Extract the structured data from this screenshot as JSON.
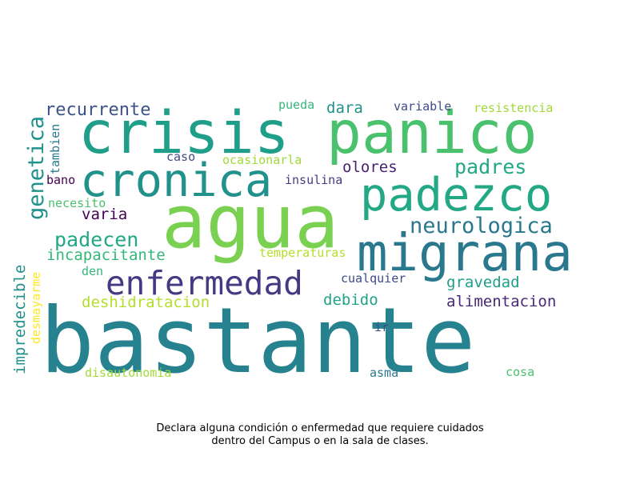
{
  "words": {
    "bastante": {
      "text": "bastante",
      "color": "#26828e"
    },
    "agua": {
      "text": "agua",
      "color": "#7ad151"
    },
    "crisis": {
      "text": "crisis",
      "color": "#1f9e89"
    },
    "panico": {
      "text": "panico",
      "color": "#4ac16d"
    },
    "migrana": {
      "text": "migrana",
      "color": "#2a788e"
    },
    "cronica": {
      "text": "cronica",
      "color": "#21918c"
    },
    "padezco": {
      "text": "padezco",
      "color": "#22a884"
    },
    "enfermedad": {
      "text": "enfermedad",
      "color": "#443983"
    },
    "genetica": {
      "text": "genetica",
      "color": "#21918c"
    },
    "neurologica": {
      "text": "neurologica",
      "color": "#2a788e"
    },
    "padres": {
      "text": "padres",
      "color": "#22a884"
    },
    "padecen": {
      "text": "padecen",
      "color": "#22a884"
    },
    "recurrente": {
      "text": "recurrente",
      "color": "#3b528b"
    },
    "incapacitante": {
      "text": "incapacitante",
      "color": "#35b779"
    },
    "deshidratacion": {
      "text": "deshidratacion",
      "color": "#b5de2b"
    },
    "gravedad": {
      "text": "gravedad",
      "color": "#1f9e89"
    },
    "alimentacion": {
      "text": "alimentacion",
      "color": "#482878"
    },
    "debido": {
      "text": "debido",
      "color": "#20a386"
    },
    "varia": {
      "text": "varia",
      "color": "#440154"
    },
    "olores": {
      "text": "olores",
      "color": "#481f70"
    },
    "dara": {
      "text": "dara",
      "color": "#21918c"
    },
    "variable": {
      "text": "variable",
      "color": "#3e4a89"
    },
    "resistencia": {
      "text": "resistencia",
      "color": "#9fda3a"
    },
    "pueda": {
      "text": "pueda",
      "color": "#35b779"
    },
    "caso": {
      "text": "caso",
      "color": "#3e4a89"
    },
    "ocasionarla": {
      "text": "ocasionarla",
      "color": "#9fda3a"
    },
    "insulina": {
      "text": "insulina",
      "color": "#433e85"
    },
    "bano": {
      "text": "bano",
      "color": "#440154"
    },
    "necesito": {
      "text": "necesito",
      "color": "#4ac16d"
    },
    "temperaturas": {
      "text": "temperaturas",
      "color": "#b5de2b"
    },
    "cualquier": {
      "text": "cualquier",
      "color": "#3e4a89"
    },
    "den": {
      "text": "den",
      "color": "#35b779"
    },
    "ir": {
      "text": "ir",
      "color": "#3e4a89"
    },
    "disautonomia": {
      "text": "disautonomia",
      "color": "#9fda3a"
    },
    "asma": {
      "text": "asma",
      "color": "#2a788e"
    },
    "cosa": {
      "text": "cosa",
      "color": "#4ac16d"
    },
    "impredecible": {
      "text": "impredecible",
      "color": "#21918c"
    },
    "desmayarme": {
      "text": "desmayarme",
      "color": "#fde725"
    },
    "tambien": {
      "text": "tambien",
      "color": "#2a788e"
    }
  },
  "caption": {
    "line1": "Declara alguna condición o enfermedad que requiere cuidados",
    "line2": "dentro del Campus o en la sala de clases."
  }
}
